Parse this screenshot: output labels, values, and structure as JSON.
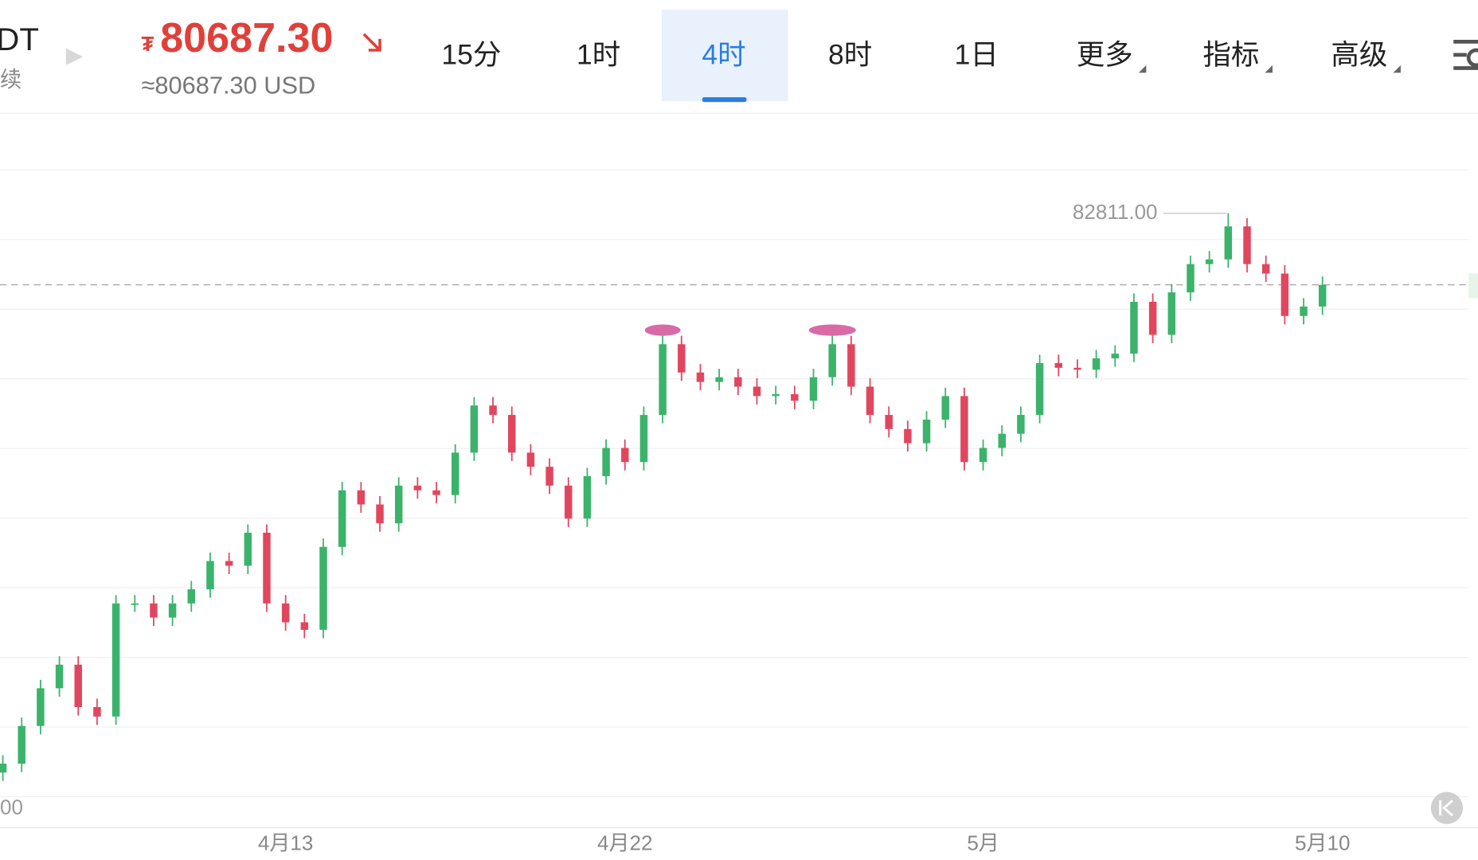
{
  "header": {
    "symbol_fragment": "DT",
    "subtitle_fragment": "续",
    "currency_symbol": "₮",
    "price": "80687.30",
    "price_usd": "≈80687.30 USD",
    "tabs": [
      "15分",
      "1时",
      "4时",
      "8时",
      "1日",
      "更多",
      "指标",
      "高级"
    ],
    "active_tab": 2
  },
  "chart_data": {
    "type": "candlestick",
    "categories": [
      null,
      null,
      null,
      null,
      null,
      null,
      null,
      null,
      null,
      null,
      null,
      null,
      null,
      null,
      null,
      "4月13",
      null,
      null,
      null,
      null,
      null,
      null,
      null,
      null,
      null,
      null,
      null,
      null,
      null,
      null,
      null,
      null,
      null,
      "4月22",
      null,
      null,
      null,
      null,
      null,
      null,
      null,
      null,
      null,
      null,
      null,
      null,
      null,
      null,
      null,
      null,
      null,
      null,
      "5月",
      null,
      null,
      null,
      null,
      null,
      null,
      null,
      null,
      null,
      null,
      null,
      null,
      null,
      null,
      null,
      null,
      null,
      "5月10"
    ],
    "candles": [
      [
        66200,
        66713,
        65950,
        66463
      ],
      [
        66463,
        67833,
        66213,
        67583
      ],
      [
        67583,
        68953,
        67333,
        68703
      ],
      [
        68703,
        69653,
        68453,
        69403
      ],
      [
        69403,
        69653,
        67893,
        68143
      ],
      [
        68143,
        68393,
        67613,
        67863
      ],
      [
        67863,
        71473,
        67613,
        71223
      ],
      [
        71223,
        71473,
        70973,
        71223
      ],
      [
        71223,
        71473,
        70553,
        70803
      ],
      [
        70803,
        71473,
        70553,
        71223
      ],
      [
        71223,
        71893,
        70973,
        71643
      ],
      [
        71643,
        72733,
        71393,
        72483
      ],
      [
        72483,
        72733,
        72093,
        72343
      ],
      [
        72343,
        73573,
        72093,
        73323
      ],
      [
        73323,
        73573,
        70973,
        71223
      ],
      [
        71223,
        71473,
        70413,
        70663
      ],
      [
        70663,
        70913,
        70189,
        70439
      ],
      [
        70439,
        73153,
        70189,
        72903
      ],
      [
        72903,
        74833,
        72653,
        74583
      ],
      [
        74583,
        74833,
        73913,
        74163
      ],
      [
        74163,
        74413,
        73353,
        73603
      ],
      [
        73603,
        74973,
        73353,
        74723
      ],
      [
        74723,
        74973,
        74333,
        74583
      ],
      [
        74583,
        74833,
        74193,
        74443
      ],
      [
        74443,
        75953,
        74193,
        75703
      ],
      [
        75703,
        77353,
        75453,
        77103
      ],
      [
        77103,
        77353,
        76573,
        76823
      ],
      [
        76823,
        77073,
        75453,
        75703
      ],
      [
        75703,
        75953,
        75033,
        75283
      ],
      [
        75283,
        75533,
        74473,
        74723
      ],
      [
        74723,
        74973,
        73493,
        73743
      ],
      [
        73743,
        75253,
        73493,
        75003
      ],
      [
        75003,
        76093,
        74753,
        75843
      ],
      [
        75843,
        76093,
        75173,
        75423
      ],
      [
        75423,
        77073,
        75173,
        76823
      ],
      [
        76823,
        79173,
        76573,
        78923
      ],
      [
        78923,
        79173,
        77833,
        78083
      ],
      [
        78083,
        78333,
        77553,
        77803
      ],
      [
        77803,
        78193,
        77553,
        77943
      ],
      [
        77943,
        78193,
        77413,
        77663
      ],
      [
        77663,
        77913,
        77133,
        77383
      ],
      [
        77383,
        77689,
        77133,
        77439
      ],
      [
        77439,
        77689,
        76993,
        77243
      ],
      [
        77243,
        78193,
        76993,
        77943
      ],
      [
        77943,
        79173,
        77693,
        78923
      ],
      [
        78923,
        79173,
        77413,
        77663
      ],
      [
        77663,
        77913,
        76573,
        76823
      ],
      [
        76823,
        77073,
        76153,
        76403
      ],
      [
        76403,
        76653,
        75733,
        75983
      ],
      [
        75983,
        76933,
        75733,
        76683
      ],
      [
        76683,
        77633,
        76433,
        77383
      ],
      [
        77383,
        77633,
        75173,
        75423
      ],
      [
        75423,
        76093,
        75173,
        75843
      ],
      [
        75843,
        76513,
        75593,
        76263
      ],
      [
        76263,
        77073,
        76013,
        76823
      ],
      [
        76823,
        78613,
        76573,
        78363
      ],
      [
        78363,
        78613,
        77973,
        78223
      ],
      [
        78223,
        78473,
        77917,
        78167
      ],
      [
        78167,
        78753,
        77917,
        78503
      ],
      [
        78503,
        78893,
        78253,
        78643
      ],
      [
        78643,
        80433,
        78393,
        80183
      ],
      [
        80183,
        80433,
        78953,
        79203
      ],
      [
        79203,
        80713,
        78953,
        80463
      ],
      [
        80463,
        81553,
        80213,
        81303
      ],
      [
        81303,
        81693,
        81053,
        81443
      ],
      [
        81443,
        82811,
        81193,
        82423
      ],
      [
        82423,
        82673,
        81053,
        81303
      ],
      [
        81303,
        81553,
        80773,
        81023
      ],
      [
        81023,
        81273,
        79513,
        79763
      ],
      [
        79763,
        80293,
        79513,
        80043
      ],
      [
        80043,
        80937,
        79793,
        80687
      ]
    ],
    "ylim": [
      64559,
      85783
    ],
    "last_price": 80687.3,
    "high_annotation": {
      "value": 82811,
      "label": "82811.00"
    },
    "ytick_fragment": "00",
    "up_color": "#3bb36b",
    "down_color": "#e0475f"
  }
}
